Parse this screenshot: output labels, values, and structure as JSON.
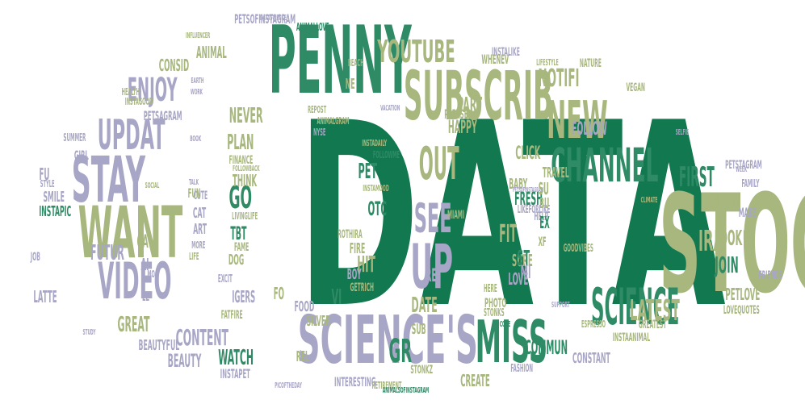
{
  "colors": {
    "green": "#12784f",
    "teal": "#2e8b66",
    "olive": "#a7b77d",
    "lavender": "#a8a6c6"
  },
  "words": [
    {
      "text": "DATA",
      "color": "green"
    },
    {
      "text": "STOCK",
      "color": "olive"
    },
    {
      "text": "PENNY",
      "color": "teal"
    },
    {
      "text": "SUBSCRIB",
      "color": "olive"
    },
    {
      "text": "SCIENCE'S",
      "color": "lavender"
    },
    {
      "text": "CHANNEL",
      "color": "teal"
    },
    {
      "text": "WANT",
      "color": "olive"
    },
    {
      "text": "STAY",
      "color": "lavender"
    },
    {
      "text": "MISS",
      "color": "teal"
    },
    {
      "text": "UP",
      "color": "lavender"
    },
    {
      "text": "SEE",
      "color": "lavender"
    },
    {
      "text": "SCIENCE",
      "color": "teal"
    },
    {
      "text": "NEW",
      "color": "olive"
    },
    {
      "text": "VIDEO",
      "color": "lavender"
    },
    {
      "text": "UPDAT",
      "color": "lavender"
    },
    {
      "text": "YOUTUBE",
      "color": "olive"
    },
    {
      "text": "ENJOY",
      "color": "lavender"
    },
    {
      "text": "OUT",
      "color": "olive"
    },
    {
      "text": "FIRST",
      "color": "teal"
    },
    {
      "text": "LATEST",
      "color": "olive"
    },
    {
      "text": "CONTENT",
      "color": "lavender"
    },
    {
      "text": "NOTIFI",
      "color": "olive"
    },
    {
      "text": "IRA",
      "color": "olive"
    },
    {
      "text": "GR",
      "color": "teal"
    },
    {
      "text": "COMMUN",
      "color": "teal"
    },
    {
      "text": "FOLLOW",
      "color": "lavender"
    },
    {
      "text": "GREAT",
      "color": "olive"
    },
    {
      "text": "WATCH",
      "color": "teal"
    },
    {
      "text": "FIT",
      "color": "olive"
    },
    {
      "text": "GO",
      "color": "teal"
    },
    {
      "text": "JOIN",
      "color": "teal"
    },
    {
      "text": "LOOK",
      "color": "olive"
    },
    {
      "text": "HIT",
      "color": "olive"
    },
    {
      "text": "PART",
      "color": "olive"
    },
    {
      "text": "NEVER",
      "color": "olive"
    },
    {
      "text": "PLAN",
      "color": "olive"
    },
    {
      "text": "DATE",
      "color": "olive"
    },
    {
      "text": "FRESH",
      "color": "teal"
    },
    {
      "text": "PET",
      "color": "teal"
    },
    {
      "text": "OTC",
      "color": "teal"
    },
    {
      "text": "CLICK",
      "color": "olive"
    },
    {
      "text": "HAPPY",
      "color": "olive"
    },
    {
      "text": "THINK",
      "color": "olive"
    },
    {
      "text": "FUTUR",
      "color": "lavender"
    },
    {
      "text": "PETLOVE",
      "color": "olive"
    },
    {
      "text": "CREATE",
      "color": "olive"
    },
    {
      "text": "CONSID",
      "color": "olive"
    },
    {
      "text": "TRAVEL",
      "color": "olive"
    },
    {
      "text": "BABY",
      "color": "olive"
    },
    {
      "text": "LOVE",
      "color": "lavender"
    },
    {
      "text": "SURE",
      "color": "olive"
    },
    {
      "text": "BEAUTY",
      "color": "lavender"
    },
    {
      "text": "BEAUTYFUL",
      "color": "lavender"
    },
    {
      "text": "LATTE",
      "color": "lavender"
    },
    {
      "text": "SMILE",
      "color": "lavender"
    },
    {
      "text": "INSTAPIC",
      "color": "teal"
    },
    {
      "text": "GIRL",
      "color": "lavender"
    },
    {
      "text": "SUMMER",
      "color": "lavender"
    },
    {
      "text": "ANIMAL",
      "color": "olive"
    },
    {
      "text": "INTERESTING",
      "color": "lavender"
    },
    {
      "text": "STREAM",
      "color": "olive"
    },
    {
      "text": "MAKE",
      "color": "lavender"
    },
    {
      "text": "FRIENDS",
      "color": "lavender"
    },
    {
      "text": "FAMILY",
      "color": "lavender"
    },
    {
      "text": "GOODVIBES",
      "color": "olive"
    },
    {
      "text": "HELP",
      "color": "lavender"
    },
    {
      "text": "INSTAANIMAL",
      "color": "olive"
    },
    {
      "text": "CONSTANT",
      "color": "lavender"
    },
    {
      "text": "FASHION",
      "color": "lavender"
    },
    {
      "text": "PHOTO",
      "color": "olive"
    },
    {
      "text": "HERE",
      "color": "olive"
    },
    {
      "text": "STONKS",
      "color": "olive"
    },
    {
      "text": "FOOD",
      "color": "lavender"
    },
    {
      "text": "SILVER",
      "color": "olive"
    },
    {
      "text": "BOY",
      "color": "lavender"
    },
    {
      "text": "FIRE",
      "color": "olive"
    },
    {
      "text": "ROTHIRA",
      "color": "olive"
    },
    {
      "text": "DOG",
      "color": "olive"
    },
    {
      "text": "FAME",
      "color": "olive"
    },
    {
      "text": "TBT",
      "color": "teal"
    },
    {
      "text": "CAT",
      "color": "lavender"
    },
    {
      "text": "ART",
      "color": "lavender"
    },
    {
      "text": "CUTE",
      "color": "lavender"
    },
    {
      "text": "FUN",
      "color": "olive"
    },
    {
      "text": "FINANCE",
      "color": "olive"
    },
    {
      "text": "FOLLOWME",
      "color": "teal"
    },
    {
      "text": "LIVINGLIFE",
      "color": "olive"
    },
    {
      "text": "FOLLOWBACK",
      "color": "olive"
    },
    {
      "text": "PETSAGRAM",
      "color": "lavender"
    },
    {
      "text": "PETSTAGRAM",
      "color": "lavender"
    },
    {
      "text": "PETSOFINSTAGRAM",
      "color": "lavender"
    },
    {
      "text": "ANIMALLOVE",
      "color": "teal"
    },
    {
      "text": "INSTAGOOD",
      "color": "olive"
    },
    {
      "text": "HEALTH",
      "color": "olive"
    },
    {
      "text": "VEGAN",
      "color": "olive"
    },
    {
      "text": "NATURE",
      "color": "olive"
    },
    {
      "text": "MIAMI",
      "color": "olive"
    },
    {
      "text": "LIKEFORLIKE",
      "color": "lavender"
    },
    {
      "text": "INSTALIKE",
      "color": "lavender"
    },
    {
      "text": "WHENEV",
      "color": "olive"
    },
    {
      "text": "BEACH",
      "color": "olive"
    },
    {
      "text": "LIFESTYLE",
      "color": "olive"
    },
    {
      "text": "INFLUENCER",
      "color": "olive"
    },
    {
      "text": "DATASCIENCE",
      "color": "lavender"
    },
    {
      "text": "PLEASE",
      "color": "olive"
    },
    {
      "text": "REPOST",
      "color": "olive"
    },
    {
      "text": "ANIMALGRAM",
      "color": "olive"
    },
    {
      "text": "VACATION",
      "color": "lavender"
    },
    {
      "text": "NYSE",
      "color": "lavender"
    },
    {
      "text": "INSTADAILY",
      "color": "olive"
    },
    {
      "text": "INSTAMOOD",
      "color": "olive"
    },
    {
      "text": "IGERS",
      "color": "lavender"
    },
    {
      "text": "FATFIRE",
      "color": "olive"
    },
    {
      "text": "EXCIT",
      "color": "lavender"
    },
    {
      "text": "REL",
      "color": "olive"
    },
    {
      "text": "STONKZ",
      "color": "olive"
    },
    {
      "text": "RETIREMENT",
      "color": "olive"
    },
    {
      "text": "PICOFTHEDAY",
      "color": "lavender"
    },
    {
      "text": "INSTAPET",
      "color": "lavender"
    },
    {
      "text": "PETSOFINSTAGRAM",
      "color": "lavender"
    },
    {
      "text": "ANIMALSOFINSTAGRAM",
      "color": "teal"
    },
    {
      "text": "LOVEQUOTES",
      "color": "olive"
    },
    {
      "text": "GREATEST",
      "color": "olive"
    },
    {
      "text": "ESPRESSO",
      "color": "olive"
    },
    {
      "text": "GETRICH",
      "color": "olive"
    },
    {
      "text": "SELFIE",
      "color": "lavender"
    },
    {
      "text": "WEEK",
      "color": "lavender"
    },
    {
      "text": "SUPPORT",
      "color": "lavender"
    },
    {
      "text": "VI",
      "color": "teal"
    },
    {
      "text": "ST",
      "color": "teal"
    },
    {
      "text": "MI",
      "color": "lavender"
    },
    {
      "text": "XF",
      "color": "olive"
    },
    {
      "text": "EX",
      "color": "teal"
    },
    {
      "text": "CA",
      "color": "olive"
    },
    {
      "text": "FO",
      "color": "olive"
    },
    {
      "text": "AI",
      "color": "lavender"
    },
    {
      "text": "FU",
      "color": "lavender"
    },
    {
      "text": "JOB",
      "color": "lavender"
    },
    {
      "text": "SU",
      "color": "olive"
    },
    {
      "text": "BU",
      "color": "olive"
    },
    {
      "text": "NE",
      "color": "olive"
    },
    {
      "text": "RE",
      "color": "lavender"
    },
    {
      "text": "FF",
      "color": "olive"
    },
    {
      "text": "LE",
      "color": "lavender"
    },
    {
      "text": "SUB",
      "color": "olive"
    },
    {
      "text": "MO",
      "color": "lavender"
    },
    {
      "text": "MORE",
      "color": "lavender"
    },
    {
      "text": "LIFE",
      "color": "olive"
    },
    {
      "text": "TALK",
      "color": "lavender"
    },
    {
      "text": "BOOK",
      "color": "lavender"
    },
    {
      "text": "STYLE",
      "color": "lavender"
    },
    {
      "text": "EARTH",
      "color": "lavender"
    },
    {
      "text": "WORK",
      "color": "lavender"
    },
    {
      "text": "CLIMATE",
      "color": "olive"
    },
    {
      "text": "STUDY",
      "color": "lavender"
    },
    {
      "text": "SOCIAL",
      "color": "olive"
    },
    {
      "text": "CODE",
      "color": "teal"
    }
  ]
}
